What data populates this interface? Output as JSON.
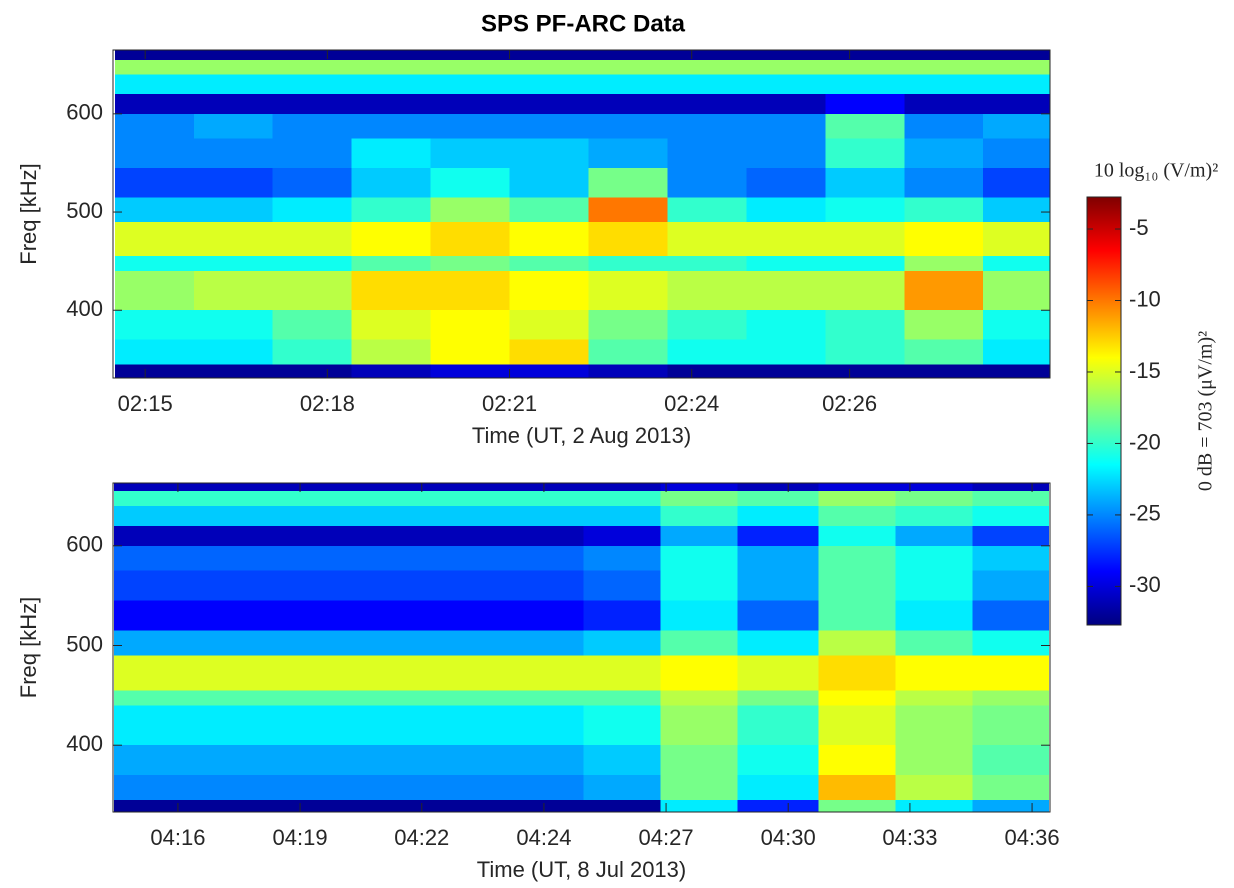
{
  "chart_data": {
    "type": "heatmap",
    "title": "SPS PF-ARC Data",
    "colormap": "jet",
    "clim": [
      -32.7,
      -2.76
    ],
    "cticks": [
      -5,
      -10,
      -15,
      -20,
      -25,
      -30
    ],
    "colorbar_label": "10 log₁₀ (V/m)²",
    "colorbar_note": "0 dB = 703 (μV/m)²",
    "panels": [
      {
        "xlabel": "Time (UT, 2 Aug 2013)",
        "ylabel": "Freq [kHz]",
        "xlim": [
          134.47,
          149.9
        ],
        "ylim": [
          331,
          665
        ],
        "xticks": [
          {
            "value": 135,
            "label": "02:15"
          },
          {
            "value": 138,
            "label": "02:18"
          },
          {
            "value": 141,
            "label": "02:21"
          },
          {
            "value": 144,
            "label": "02:24"
          },
          {
            "value": 146.6,
            "label": "02:26"
          }
        ],
        "yticks": [
          400,
          500,
          600
        ],
        "x_edges": [
          134.5,
          135.8,
          137.1,
          138.4,
          139.7,
          141,
          142.3,
          143.6,
          144.9,
          146.2,
          147.5,
          148.8,
          149.9
        ],
        "y_edges": [
          331,
          345,
          370,
          400,
          440,
          455,
          490,
          515,
          545,
          575,
          600,
          620,
          640,
          655,
          665
        ],
        "z": [
          [
            -32,
            -32,
            -32,
            -31,
            -30,
            -30,
            -31,
            -32,
            -32,
            -32,
            -32,
            -32
          ],
          [
            -22,
            -22,
            -20,
            -16,
            -14,
            -13,
            -19,
            -21,
            -21,
            -20,
            -19,
            -22
          ],
          [
            -21,
            -21,
            -19,
            -15,
            -14,
            -15,
            -18,
            -20,
            -21,
            -20,
            -17,
            -21
          ],
          [
            -17,
            -16,
            -16,
            -13,
            -13,
            -14,
            -15,
            -16,
            -16,
            -16,
            -11,
            -17
          ],
          [
            -21,
            -21,
            -21,
            -19,
            -18,
            -19,
            -20,
            -20,
            -21,
            -21,
            -17,
            -21
          ],
          [
            -15,
            -15,
            -15,
            -14,
            -13,
            -14,
            -13,
            -15,
            -15,
            -15,
            -14,
            -15
          ],
          [
            -23,
            -23,
            -22,
            -20,
            -17,
            -19,
            -10,
            -20,
            -22,
            -21,
            -20,
            -23
          ],
          [
            -27,
            -27,
            -26,
            -23,
            -21,
            -23,
            -18,
            -25,
            -26,
            -23,
            -25,
            -27
          ],
          [
            -25,
            -25,
            -25,
            -22,
            -23,
            -23,
            -24,
            -25,
            -25,
            -20,
            -24,
            -25
          ],
          [
            -25,
            -24,
            -25,
            -25,
            -25,
            -25,
            -25,
            -25,
            -25,
            -19,
            -25,
            -24
          ],
          [
            -31,
            -31,
            -31,
            -31,
            -31,
            -31,
            -31,
            -31,
            -31,
            -29,
            -31,
            -31
          ],
          [
            -22,
            -22,
            -22,
            -22,
            -22,
            -22,
            -22,
            -22,
            -22,
            -22,
            -22,
            -22
          ],
          [
            -17,
            -17,
            -17,
            -17,
            -17,
            -17,
            -17,
            -17,
            -17,
            -17,
            -17,
            -17
          ],
          [
            -32,
            -32,
            -32,
            -32,
            -32,
            -32,
            -32,
            -32,
            -32,
            -32,
            -32,
            -32
          ]
        ]
      },
      {
        "xlabel": "Time (UT, 8 Jul 2013)",
        "ylabel": "Freq [kHz]",
        "xlim": [
          254.48,
          276.42
        ],
        "ylim": [
          333,
          663
        ],
        "xticks": [
          {
            "value": 256,
            "label": "04:16"
          },
          {
            "value": 258.86,
            "label": "04:19"
          },
          {
            "value": 261.71,
            "label": "04:22"
          },
          {
            "value": 264.57,
            "label": "04:24"
          },
          {
            "value": 267.43,
            "label": "04:27"
          },
          {
            "value": 270.29,
            "label": "04:30"
          },
          {
            "value": 273.14,
            "label": "04:33"
          },
          {
            "value": 276,
            "label": "04:36"
          }
        ],
        "yticks": [
          400,
          500,
          600
        ],
        "x_edges": [
          254.5,
          256.3,
          258.1,
          260,
          261.8,
          263.6,
          265.5,
          267.3,
          269.1,
          271,
          272.8,
          274.6,
          276.4
        ],
        "y_edges": [
          333,
          345,
          370,
          400,
          440,
          455,
          490,
          515,
          545,
          575,
          600,
          620,
          640,
          655,
          663
        ],
        "z": [
          [
            -32,
            -32,
            -32,
            -32,
            -32,
            -32,
            -32,
            -22,
            -28,
            -18,
            -22,
            -24
          ],
          [
            -25,
            -25,
            -25,
            -25,
            -25,
            -25,
            -24,
            -18,
            -22,
            -12,
            -16,
            -18
          ],
          [
            -24,
            -24,
            -24,
            -24,
            -24,
            -24,
            -23,
            -18,
            -21,
            -14,
            -17,
            -19
          ],
          [
            -22,
            -22,
            -22,
            -22,
            -22,
            -22,
            -21,
            -17,
            -20,
            -15,
            -17,
            -18
          ],
          [
            -19,
            -19,
            -19,
            -19,
            -19,
            -19,
            -19,
            -16,
            -18,
            -14,
            -16,
            -17
          ],
          [
            -15,
            -15,
            -15,
            -15,
            -15,
            -15,
            -15,
            -14,
            -15,
            -13,
            -14,
            -14
          ],
          [
            -24,
            -24,
            -24,
            -24,
            -24,
            -24,
            -23,
            -19,
            -22,
            -16,
            -19,
            -21
          ],
          [
            -29,
            -29,
            -29,
            -29,
            -29,
            -29,
            -28,
            -22,
            -26,
            -19,
            -22,
            -26
          ],
          [
            -27,
            -27,
            -27,
            -27,
            -27,
            -27,
            -26,
            -21,
            -24,
            -19,
            -21,
            -24
          ],
          [
            -26,
            -26,
            -26,
            -26,
            -26,
            -26,
            -25,
            -21,
            -24,
            -19,
            -21,
            -23
          ],
          [
            -31,
            -31,
            -31,
            -31,
            -31,
            -31,
            -30,
            -24,
            -28,
            -21,
            -24,
            -27
          ],
          [
            -23,
            -23,
            -23,
            -23,
            -23,
            -23,
            -23,
            -20,
            -22,
            -19,
            -20,
            -21
          ],
          [
            -20,
            -20,
            -20,
            -20,
            -20,
            -20,
            -20,
            -18,
            -19,
            -17,
            -18,
            -19
          ],
          [
            -31,
            -31,
            -31,
            -31,
            -31,
            -31,
            -31,
            -30,
            -31,
            -30,
            -30,
            -31
          ]
        ]
      }
    ]
  }
}
